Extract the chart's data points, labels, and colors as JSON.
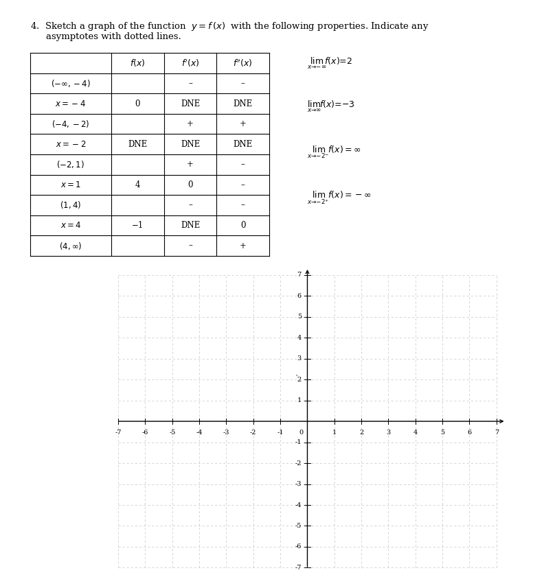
{
  "title_line1": "4.  Sketch a graph of the function  $y = f\\,(x)$  with the following properties. Indicate any",
  "title_line2": "asymptotes with dotted lines.",
  "table_headers": [
    "",
    "$f(x)$",
    "$f'(x)$",
    "$f''(x)$"
  ],
  "table_rows": [
    [
      "$(-\\infty,-4)$",
      "",
      "–",
      "–"
    ],
    [
      "$x=-4$",
      "0",
      "DNE",
      "DNE"
    ],
    [
      "$(-4,-2)$",
      "",
      "+",
      "+"
    ],
    [
      "$x=-2$",
      "DNE",
      "DNE",
      "DNE"
    ],
    [
      "$(-2,1)$",
      "",
      "+",
      "–"
    ],
    [
      "$x=1$",
      "4",
      "0",
      "–"
    ],
    [
      "$(1,4)$",
      "",
      "–",
      "–"
    ],
    [
      "$x=4$",
      "−1",
      "DNE",
      "0"
    ],
    [
      "$(4,\\infty)$",
      "",
      "–",
      "+"
    ]
  ],
  "limit_line1": "$\\lim_{x\\to-\\infty}\\!f(x)=2$",
  "limit_line2": "$\\lim_{x\\to\\infty}\\!f(x)=-3$",
  "limit_line3": "$\\lim_{x\\to-2^-}\\!f(x)=\\infty$",
  "limit_line4": "$\\lim_{x\\to-2^+}\\!f(x)=-\\infty$",
  "grid_xlim": [
    -7,
    7
  ],
  "grid_ylim": [
    -7,
    7
  ],
  "grid_xticks": [
    -7,
    -6,
    -5,
    -4,
    -3,
    -2,
    -1,
    0,
    1,
    2,
    3,
    4,
    5,
    6,
    7
  ],
  "grid_yticks": [
    -7,
    -6,
    -5,
    -4,
    -3,
    -2,
    -1,
    0,
    1,
    2,
    3,
    4,
    5,
    6,
    7
  ],
  "background_color": "#ffffff",
  "fig_width": 7.92,
  "fig_height": 8.57
}
